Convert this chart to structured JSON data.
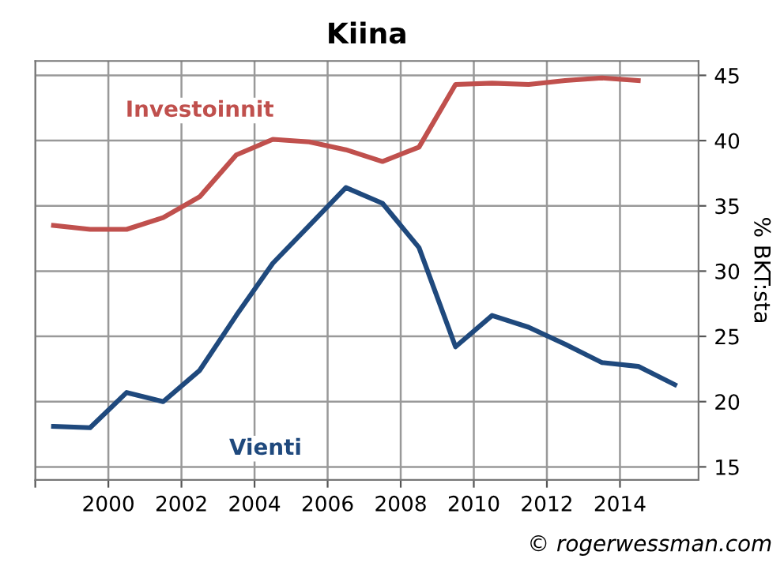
{
  "chart_data": {
    "type": "line",
    "title": "Kiina",
    "ylabel": "% BKT:sta",
    "x": [
      1998.5,
      1999.5,
      2000.5,
      2001.5,
      2002.5,
      2003.5,
      2004.5,
      2005.5,
      2006.5,
      2007.5,
      2008.5,
      2009.5,
      2010.5,
      2011.5,
      2012.5,
      2013.5,
      2014.5,
      2015.5
    ],
    "series": [
      {
        "name": "Investoinnit",
        "color": "#c0504d",
        "values": [
          33.5,
          33.2,
          33.2,
          34.1,
          35.7,
          38.9,
          40.1,
          39.9,
          39.3,
          38.4,
          39.5,
          44.3,
          44.4,
          44.3,
          44.6,
          44.8,
          44.6,
          null
        ]
      },
      {
        "name": "Vienti",
        "color": "#1f497d",
        "values": [
          18.1,
          18.0,
          20.7,
          20.0,
          22.4,
          26.6,
          30.6,
          33.5,
          36.4,
          35.2,
          31.8,
          24.2,
          26.6,
          25.7,
          24.4,
          23.0,
          22.7,
          21.3
        ]
      }
    ],
    "xlim": [
      1998,
      2016.15
    ],
    "xticks": [
      {
        "value": 1998,
        "label": null
      },
      2000,
      2002,
      2004,
      2006,
      2008,
      2010,
      2012,
      2014
    ],
    "ylim": [
      14,
      46.1
    ],
    "yticks": [
      15,
      20,
      25,
      30,
      35,
      40,
      45
    ],
    "grid": true,
    "legend": false,
    "marker": "none",
    "line_style": "solid",
    "annotations": [
      "© rogerwessman.com"
    ]
  }
}
